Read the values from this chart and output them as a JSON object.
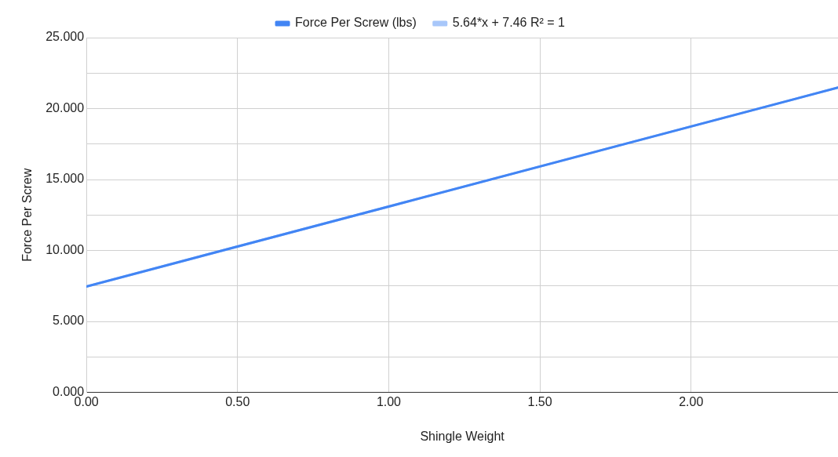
{
  "chart_data": {
    "type": "line",
    "xlabel": "Shingle Weight",
    "ylabel": "Force Per Screw",
    "legend": "top",
    "grid": true,
    "marker": "none",
    "line_style": "solid",
    "x": [
      0,
      2.486
    ],
    "xlim": [
      0,
      2.486
    ],
    "ylim": [
      0,
      25
    ],
    "xticks": [
      {
        "value": 0,
        "label": "0.00"
      },
      {
        "value": 0.5,
        "label": "0.50"
      },
      {
        "value": 1,
        "label": "1.00"
      },
      {
        "value": 1.5,
        "label": "1.50"
      },
      {
        "value": 2,
        "label": "2.00"
      }
    ],
    "yticks": [
      {
        "value": 0,
        "label": "0.000"
      },
      {
        "value": 2.5,
        "label": null
      },
      {
        "value": 5,
        "label": "5.000"
      },
      {
        "value": 7.5,
        "label": null
      },
      {
        "value": 10,
        "label": "10.000"
      },
      {
        "value": 12.5,
        "label": null
      },
      {
        "value": 15,
        "label": "15.000"
      },
      {
        "value": 17.5,
        "label": null
      },
      {
        "value": 20,
        "label": "20.000"
      },
      {
        "value": 22.5,
        "label": null
      },
      {
        "value": 25,
        "label": "25.000"
      }
    ],
    "series": [
      {
        "name": "Force Per Screw (lbs)",
        "color": "#4285f4",
        "values": [
          7.46,
          21.48
        ]
      },
      {
        "name": "5.64*x + 7.46 R² = 1",
        "color": "#a8c7fa",
        "values": [
          7.46,
          21.48
        ]
      }
    ]
  }
}
